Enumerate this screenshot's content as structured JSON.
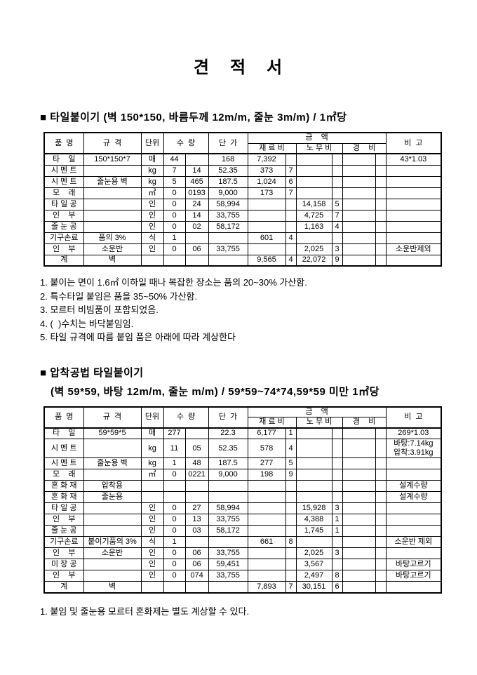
{
  "title": "견 적 서",
  "table_header": {
    "item": "품  명",
    "spec": "규  격",
    "unit": "단위",
    "qty": "수  량",
    "unit_price": "단  가",
    "amount": "금    액",
    "material": "재 료 비",
    "labor": "노 무 비",
    "expense": "경    비",
    "remark": "비  고"
  },
  "section1": {
    "heading": "■ 타일붙이기 (벽 150*150, 바름두께 12m/m, 줄눈 3m/m) / 1㎡당",
    "rows": [
      [
        "타    일",
        "150*150*7",
        "매",
        "44",
        "",
        "168",
        "7,392",
        "",
        "",
        "",
        "",
        "",
        "43*1.03"
      ],
      [
        "시 멘 트",
        "",
        "kg",
        "7",
        "14",
        "52.35",
        "373",
        "7",
        "",
        "",
        "",
        "",
        ""
      ],
      [
        "시 멘 트",
        "줄눈용 벽",
        "kg",
        "5",
        "465",
        "187.5",
        "1,024",
        "6",
        "",
        "",
        "",
        "",
        ""
      ],
      [
        "모    래",
        "",
        "㎥",
        "0",
        "0193",
        "9,000",
        "173",
        "7",
        "",
        "",
        "",
        "",
        ""
      ],
      [
        "타 일 공",
        "",
        "인",
        "0",
        "24",
        "58,994",
        "",
        "",
        "14,158",
        "5",
        "",
        "",
        ""
      ],
      [
        "인    부",
        "",
        "인",
        "0",
        "14",
        "33,755",
        "",
        "",
        "4,725",
        "7",
        "",
        "",
        ""
      ],
      [
        "줄 눈 공",
        "",
        "인",
        "0",
        "02",
        "58,172",
        "",
        "",
        "1,163",
        "4",
        "",
        "",
        ""
      ],
      [
        "기구손료",
        "품의 3%",
        "식",
        "1",
        "",
        "",
        "601",
        "4",
        "",
        "",
        "",
        "",
        ""
      ],
      [
        "인    부",
        "소운반",
        "인",
        "0",
        "06",
        "33,755",
        "",
        "",
        "2,025",
        "3",
        "",
        "",
        "소운반제외"
      ],
      [
        "계",
        "벽",
        "",
        "",
        "",
        "",
        "9,565",
        "4",
        "22,072",
        "9",
        "",
        "",
        ""
      ]
    ],
    "notes": [
      "1. 붙이는 면이 1.6㎡ 이하일 때나 복잡한 장소는 품의 20~30% 가산함.",
      "2. 특수타일 붙임은 품을 35~50% 가산함.",
      "3. 모르터 비빔품이 포함되었음.",
      "4. (  )수치는 바닥붙임임.",
      "5. 타일 규격에 따름 붙임 품은 아래에 따라 계상한다"
    ]
  },
  "section2": {
    "heading_line1": "■ 압착공법 타일붙이기",
    "heading_line2": "(벽 59*59, 바탕 12m/m, 줄눈 m/m) / 59*59~74*74,59*59 미만 1㎡당",
    "rows": [
      [
        "타    일",
        "59*59*5",
        "매",
        "277",
        "",
        "22.3",
        "6,177",
        "1",
        "",
        "",
        "",
        "",
        "269*1.03"
      ],
      [
        "시 멘 트",
        "",
        "kg",
        "11",
        "05",
        "52.35",
        "578",
        "4",
        "",
        "",
        "",
        "",
        "바탕:7.14kg\n압착:3.91kg"
      ],
      [
        "시 멘 트",
        "줄눈용 벽",
        "kg",
        "1",
        "48",
        "187.5",
        "277",
        "5",
        "",
        "",
        "",
        "",
        ""
      ],
      [
        "모    래",
        "",
        "㎥",
        "0",
        "0221",
        "9,000",
        "198",
        "9",
        "",
        "",
        "",
        "",
        ""
      ],
      [
        "혼 화 재",
        "압착용",
        "",
        "",
        "",
        "",
        "",
        "",
        "",
        "",
        "",
        "",
        "설계수량"
      ],
      [
        "혼 화 재",
        "줄눈용",
        "",
        "",
        "",
        "",
        "",
        "",
        "",
        "",
        "",
        "",
        "설계수량"
      ],
      [
        "타 일 공",
        "",
        "인",
        "0",
        "27",
        "58,994",
        "",
        "",
        "15,928",
        "3",
        "",
        "",
        ""
      ],
      [
        "인    부",
        "",
        "인",
        "0",
        "13",
        "33,755",
        "",
        "",
        "4,388",
        "1",
        "",
        "",
        ""
      ],
      [
        "줄 눈 공",
        "",
        "인",
        "0",
        "03",
        "58,172",
        "",
        "",
        "1,745",
        "1",
        "",
        "",
        ""
      ],
      [
        "기구손료",
        "붙이기품의 3%",
        "식",
        "1",
        "",
        "",
        "661",
        "8",
        "",
        "",
        "",
        "",
        "소운반 제외"
      ],
      [
        "인    부",
        "소운반",
        "인",
        "0",
        "06",
        "33,755",
        "",
        "",
        "2,025",
        "3",
        "",
        "",
        ""
      ],
      [
        "미 장 공",
        "",
        "인",
        "0",
        "06",
        "59,451",
        "",
        "",
        "3,567",
        "",
        "",
        "",
        "바탕고르기"
      ],
      [
        "인    부",
        "",
        "인",
        "0",
        "074",
        "33,755",
        "",
        "",
        "2,497",
        "8",
        "",
        "",
        "바탕고르기"
      ],
      [
        "계",
        "벽",
        "",
        "",
        "",
        "",
        "7,893",
        "7",
        "30,151",
        "6",
        "",
        "",
        ""
      ]
    ],
    "notes": [
      "1. 붙임 및 줄눈용 모르터 혼화제는 별도 계상할 수 있다."
    ]
  }
}
